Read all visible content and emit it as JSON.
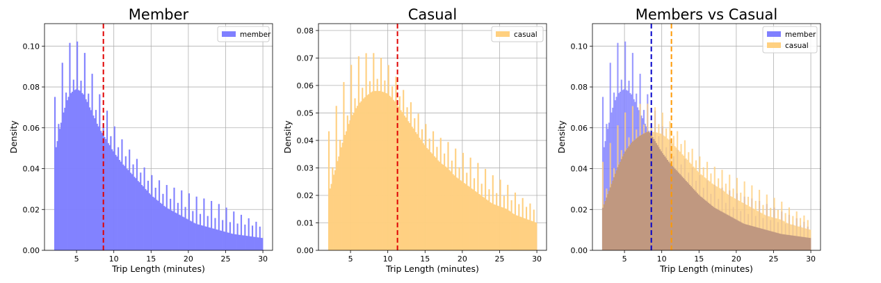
{
  "chart_data": [
    {
      "type": "histogram",
      "title": "Member",
      "xlabel": "Trip Length (minutes)",
      "ylabel": "Density",
      "xlim": [
        0.7,
        31.3
      ],
      "ylim": [
        0,
        0.111
      ],
      "xticks": [
        5,
        10,
        15,
        20,
        25,
        30
      ],
      "yticks": [
        0.0,
        0.02,
        0.04,
        0.06,
        0.08,
        0.1
      ],
      "ytick_labels": [
        "0.00",
        "0.02",
        "0.04",
        "0.06",
        "0.08",
        "0.10"
      ],
      "grid": true,
      "legend_position": "top-right",
      "bins": {
        "start": 2,
        "end": 30,
        "count": 168
      },
      "series": [
        {
          "name": "member",
          "color": "#8080ff",
          "envelope_x": [
            2,
            2.5,
            3,
            3.5,
            4,
            4.5,
            5,
            5.5,
            6,
            6.5,
            7,
            7.5,
            8,
            8.5,
            9,
            10,
            11,
            12,
            13,
            14,
            15,
            16,
            17,
            18,
            19,
            20,
            21,
            22,
            23,
            24,
            25,
            26,
            27,
            28,
            29,
            30
          ],
          "envelope_y": [
            0.046,
            0.055,
            0.064,
            0.071,
            0.076,
            0.078,
            0.079,
            0.078,
            0.076,
            0.072,
            0.068,
            0.064,
            0.06,
            0.057,
            0.054,
            0.048,
            0.043,
            0.039,
            0.035,
            0.031,
            0.027,
            0.024,
            0.021,
            0.019,
            0.017,
            0.015,
            0.013,
            0.012,
            0.011,
            0.01,
            0.009,
            0.008,
            0.0075,
            0.007,
            0.0065,
            0.006
          ],
          "spike_amplitude": 0.027
        }
      ],
      "vlines": [
        {
          "x": 8.6,
          "color": "#e00000",
          "dash": true
        }
      ]
    },
    {
      "type": "histogram",
      "title": "Casual",
      "xlabel": "Trip Length (minutes)",
      "ylabel": "Density",
      "xlim": [
        0.7,
        31.3
      ],
      "ylim": [
        0,
        0.0825
      ],
      "xticks": [
        5,
        10,
        15,
        20,
        25,
        30
      ],
      "yticks": [
        0.0,
        0.01,
        0.02,
        0.03,
        0.04,
        0.05,
        0.06,
        0.07,
        0.08
      ],
      "ytick_labels": [
        "0.00",
        "0.01",
        "0.02",
        "0.03",
        "0.04",
        "0.05",
        "0.06",
        "0.07",
        "0.08"
      ],
      "grid": true,
      "legend_position": "top-right",
      "bins": {
        "start": 2,
        "end": 30,
        "count": 168
      },
      "series": [
        {
          "name": "casual",
          "color": "#ffd080",
          "envelope_x": [
            2,
            3,
            4,
            5,
            6,
            7,
            8,
            9,
            10,
            11,
            12,
            13,
            14,
            15,
            16,
            17,
            18,
            19,
            20,
            21,
            22,
            23,
            24,
            25,
            26,
            27,
            28,
            29,
            30
          ],
          "envelope_y": [
            0.02,
            0.03,
            0.04,
            0.048,
            0.053,
            0.056,
            0.058,
            0.058,
            0.057,
            0.054,
            0.05,
            0.046,
            0.042,
            0.038,
            0.035,
            0.032,
            0.03,
            0.027,
            0.025,
            0.023,
            0.021,
            0.019,
            0.017,
            0.016,
            0.015,
            0.013,
            0.012,
            0.011,
            0.01
          ],
          "spike_amplitude": 0.022
        }
      ],
      "vlines": [
        {
          "x": 11.3,
          "color": "#e00000",
          "dash": true
        }
      ]
    },
    {
      "type": "histogram",
      "title": "Members vs Casual",
      "xlabel": "Trip Length (minutes)",
      "ylabel": "Density",
      "xlim": [
        0.7,
        31.3
      ],
      "ylim": [
        0,
        0.111
      ],
      "xticks": [
        5,
        10,
        15,
        20,
        25,
        30
      ],
      "yticks": [
        0.0,
        0.02,
        0.04,
        0.06,
        0.08,
        0.1
      ],
      "ytick_labels": [
        "0.00",
        "0.02",
        "0.04",
        "0.06",
        "0.08",
        "0.10"
      ],
      "grid": true,
      "legend_position": "top-right",
      "bins": {
        "start": 2,
        "end": 30,
        "count": 168
      },
      "series": [
        {
          "name": "member",
          "color": "#8080ff",
          "envelope_x": [
            2,
            2.5,
            3,
            3.5,
            4,
            4.5,
            5,
            5.5,
            6,
            6.5,
            7,
            7.5,
            8,
            8.5,
            9,
            10,
            11,
            12,
            13,
            14,
            15,
            16,
            17,
            18,
            19,
            20,
            21,
            22,
            23,
            24,
            25,
            26,
            27,
            28,
            29,
            30
          ],
          "envelope_y": [
            0.046,
            0.055,
            0.064,
            0.071,
            0.076,
            0.078,
            0.079,
            0.078,
            0.076,
            0.072,
            0.068,
            0.064,
            0.06,
            0.057,
            0.054,
            0.048,
            0.043,
            0.039,
            0.035,
            0.031,
            0.027,
            0.024,
            0.021,
            0.019,
            0.017,
            0.015,
            0.013,
            0.012,
            0.011,
            0.01,
            0.009,
            0.008,
            0.0075,
            0.007,
            0.0065,
            0.006
          ],
          "spike_amplitude": 0.027
        },
        {
          "name": "casual",
          "color": "#ffd080",
          "envelope_x": [
            2,
            3,
            4,
            5,
            6,
            7,
            8,
            9,
            10,
            11,
            12,
            13,
            14,
            15,
            16,
            17,
            18,
            19,
            20,
            21,
            22,
            23,
            24,
            25,
            26,
            27,
            28,
            29,
            30
          ],
          "envelope_y": [
            0.02,
            0.03,
            0.04,
            0.048,
            0.053,
            0.056,
            0.058,
            0.058,
            0.057,
            0.054,
            0.05,
            0.046,
            0.042,
            0.038,
            0.035,
            0.032,
            0.03,
            0.027,
            0.025,
            0.023,
            0.021,
            0.019,
            0.017,
            0.016,
            0.015,
            0.013,
            0.012,
            0.011,
            0.01
          ],
          "spike_amplitude": 0.022
        }
      ],
      "vlines": [
        {
          "x": 8.6,
          "color": "#0000cc",
          "dash": true
        },
        {
          "x": 11.3,
          "color": "#ff9900",
          "dash": true
        }
      ]
    }
  ]
}
